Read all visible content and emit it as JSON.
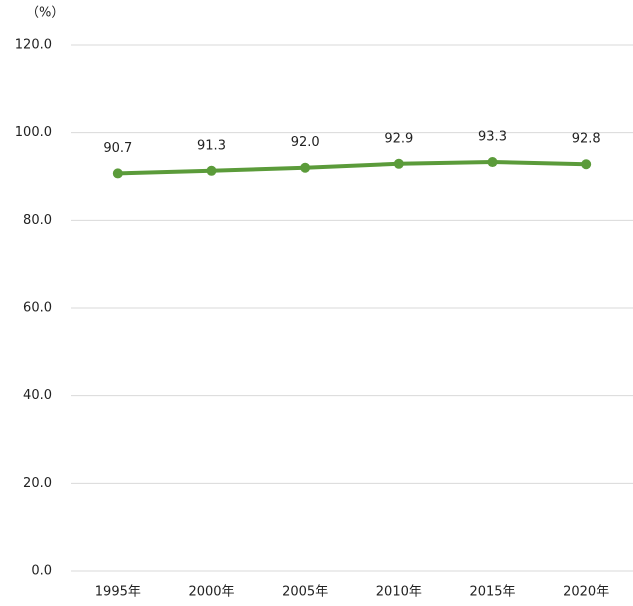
{
  "chart_data": {
    "type": "line",
    "y_unit_label": "（%）",
    "categories": [
      "1995年",
      "2000年",
      "2005年",
      "2010年",
      "2015年",
      "2020年"
    ],
    "series": [
      {
        "color": "#5b9b3a",
        "values": [
          90.7,
          91.3,
          92.0,
          92.9,
          93.3,
          92.8
        ],
        "value_labels": [
          "90.7",
          "91.3",
          "92.0",
          "92.9",
          "93.3",
          "92.8"
        ]
      }
    ],
    "ylim": [
      0,
      120
    ],
    "yticks": [
      {
        "value": 0,
        "label": "0.0"
      },
      {
        "value": 20,
        "label": "20.0"
      },
      {
        "value": 40,
        "label": "40.0"
      },
      {
        "value": 60,
        "label": "60.0"
      },
      {
        "value": 80,
        "label": "80.0"
      },
      {
        "value": 100,
        "label": "100.0"
      },
      {
        "value": 120,
        "label": "120.0"
      }
    ],
    "grid": true
  }
}
